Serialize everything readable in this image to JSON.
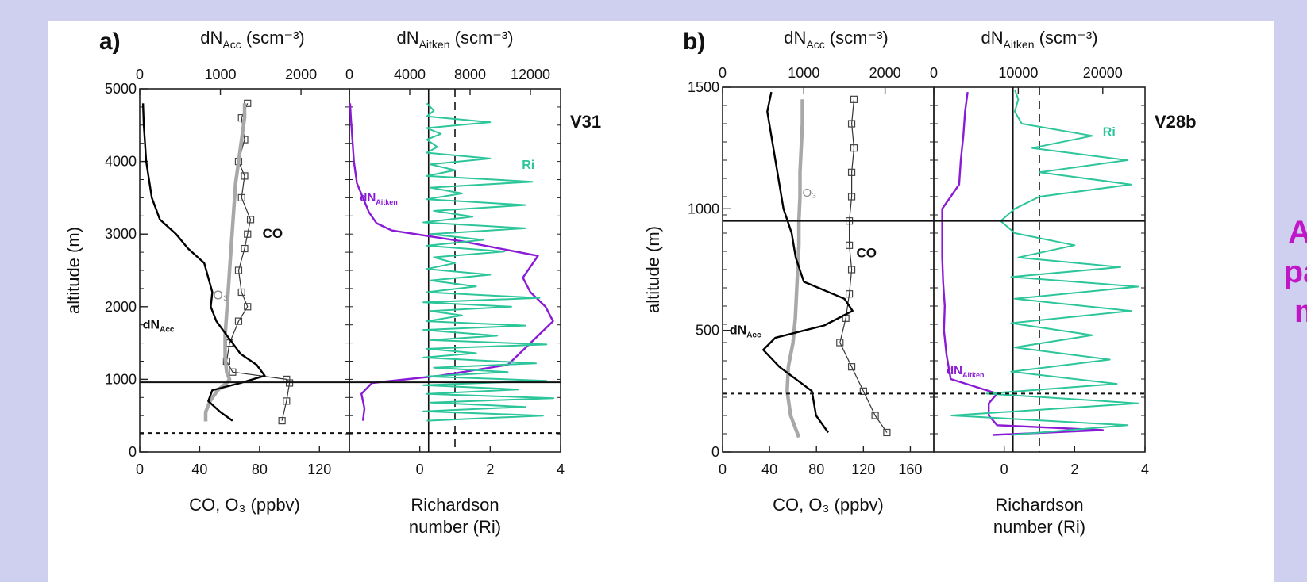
{
  "colors": {
    "background": "#cfd0f0",
    "card": "#ffffff",
    "dNAcc": "#000000",
    "CO": "#333333",
    "O3": "#a8a8a8",
    "dNAitken": "#8a1ad6",
    "Ri": "#2dc59a",
    "callout": "#c016c8"
  },
  "callout": {
    "line1": "Aitk",
    "line2": "parti",
    "line3": "mo"
  },
  "chart_data": [
    {
      "type": "line",
      "panel_label": "a)",
      "flight_label": "V31",
      "subplots": [
        {
          "xlabel_bottom": "CO, O₃ (ppbv)",
          "xlabel_top": "dN_Acc (scm⁻³)",
          "xlim_bottom": [
            0,
            140
          ],
          "xticks_bottom": [
            0,
            40,
            80,
            120
          ],
          "xlim_top": [
            0,
            2600
          ],
          "xticks_top": [
            0,
            1000,
            2000
          ],
          "ylabel": "altitude (m)",
          "ylim": [
            0,
            5000
          ],
          "yticks": [
            0,
            1000,
            2000,
            3000,
            4000,
            5000
          ],
          "series": [
            {
              "name": "CO",
              "axis": "bottom",
              "marker": "square",
              "y": [
                430,
                700,
                950,
                1000,
                1100,
                1250,
                1500,
                1800,
                2000,
                2200,
                2500,
                2800,
                3000,
                3200,
                3500,
                3800,
                4000,
                4300,
                4600,
                4800
              ],
              "x": [
                95,
                98,
                100,
                98,
                62,
                58,
                60,
                66,
                72,
                68,
                66,
                70,
                72,
                74,
                68,
                70,
                66,
                70,
                68,
                72
              ]
            },
            {
              "name": "O₃",
              "axis": "bottom",
              "y": [
                420,
                550,
                700,
                850,
                950,
                1000,
                1100,
                1300,
                1600,
                1900,
                2200,
                2500,
                2800,
                3100,
                3400,
                3700,
                4000,
                4300,
                4600,
                4800
              ],
              "x": [
                44,
                44,
                47,
                52,
                58,
                60,
                58,
                57,
                57,
                58,
                59,
                60,
                61,
                62,
                63,
                64,
                66,
                68,
                70,
                70
              ]
            },
            {
              "name": "dN_Acc",
              "axis": "top",
              "y": [
                430,
                550,
                700,
                850,
                950,
                1050,
                1200,
                1350,
                1500,
                1650,
                1800,
                2000,
                2200,
                2400,
                2600,
                2800,
                3000,
                3200,
                3500,
                4000,
                4500,
                4800
              ],
              "x": [
                1150,
                1000,
                850,
                900,
                1250,
                1550,
                1450,
                1250,
                1150,
                1050,
                950,
                880,
                900,
                850,
                800,
                600,
                450,
                250,
                150,
                80,
                50,
                40
              ]
            }
          ],
          "hlines": [
            {
              "y": 960,
              "style": "solid"
            },
            {
              "y": 260,
              "style": "dotted"
            }
          ]
        },
        {
          "xlabel_bottom": "Richardson number (Ri)",
          "xlabel_top": "dN_Aitken (scm⁻³)",
          "xlim_bottom": [
            -2,
            4
          ],
          "xticks_bottom": [
            0,
            2,
            4
          ],
          "xlim_top": [
            0,
            14000
          ],
          "xticks_top": [
            0,
            4000,
            8000,
            12000
          ],
          "ylim": [
            0,
            5000
          ],
          "series": [
            {
              "name": "dN_Aitken",
              "axis": "top",
              "y": [
                430,
                600,
                800,
                950,
                1050,
                1200,
                1500,
                1800,
                2000,
                2200,
                2400,
                2700,
                2900,
                3050,
                3150,
                3300,
                3500,
                3700,
                4000,
                4300,
                4600,
                4800
              ],
              "x": [
                900,
                1000,
                800,
                1500,
                6000,
                10500,
                12000,
                13500,
                13000,
                12000,
                11500,
                12500,
                7500,
                2800,
                1800,
                1300,
                900,
                500,
                300,
                200,
                100,
                50
              ],
              "annotation": "dN_Aitken"
            },
            {
              "name": "Ri",
              "axis": "bottom",
              "y": [
                430,
                500,
                560,
                620,
                680,
                740,
                800,
                860,
                920,
                980,
                1040,
                1100,
                1160,
                1220,
                1300,
                1360,
                1420,
                1480,
                1540,
                1600,
                1680,
                1740,
                1800,
                1880,
                1940,
                2000,
                2060,
                2120,
                2200,
                2280,
                2360,
                2440,
                2520,
                2600,
                2680,
                2760,
                2840,
                2920,
                3000,
                3080,
                3160,
                3240,
                3320,
                3400,
                3480,
                3560,
                3640,
                3720,
                3800,
                3880,
                3960,
                4040,
                4120,
                4200,
                4300,
                4380,
                4460,
                4540,
                4620,
                4700,
                4800
              ],
              "x": [
                0.2,
                3.5,
                0.1,
                3.0,
                0.3,
                3.8,
                0.2,
                2.8,
                0.1,
                3.6,
                0.2,
                2.5,
                0.4,
                3.3,
                0.1,
                1.6,
                0.2,
                3.6,
                0.3,
                2.2,
                0.1,
                3.0,
                0.2,
                1.2,
                0.3,
                2.6,
                0.1,
                3.4,
                0.2,
                1.6,
                0.3,
                2.0,
                0.2,
                1.0,
                0.4,
                2.4,
                0.2,
                1.8,
                0.3,
                3.0,
                0.1,
                1.5,
                0.4,
                3.0,
                0.2,
                1.2,
                0.3,
                3.2,
                0.2,
                1.0,
                0.3,
                2.0,
                0.2,
                0.5,
                0.2,
                0.6,
                0.2,
                2.0,
                0.2,
                0.4,
                0.2
              ],
              "annotation": "Ri"
            }
          ],
          "vlines": [
            {
              "x": 0.25,
              "style": "solid"
            },
            {
              "x": 1,
              "style": "dashed"
            }
          ],
          "hlines": [
            {
              "y": 960,
              "style": "solid"
            },
            {
              "y": 260,
              "style": "dotted"
            }
          ]
        }
      ]
    },
    {
      "type": "line",
      "panel_label": "b)",
      "flight_label": "V28b",
      "subplots": [
        {
          "xlabel_bottom": "CO, O₃ (ppbv)",
          "xlabel_top": "dN_Acc (scm⁻³)",
          "xlim_bottom": [
            0,
            180
          ],
          "xticks_bottom": [
            0,
            40,
            80,
            120,
            160
          ],
          "xlim_top": [
            0,
            2600
          ],
          "xticks_top": [
            0,
            1000,
            2000
          ],
          "ylabel": "altitude (m)",
          "ylim": [
            0,
            1500
          ],
          "yticks": [
            0,
            500,
            1000,
            1500
          ],
          "series": [
            {
              "name": "CO",
              "axis": "bottom",
              "marker": "square",
              "y": [
                80,
                150,
                250,
                350,
                450,
                550,
                650,
                750,
                850,
                950,
                1050,
                1150,
                1250,
                1350,
                1450
              ],
              "x": [
                140,
                130,
                120,
                110,
                100,
                105,
                108,
                110,
                108,
                108,
                110,
                110,
                112,
                110,
                112
              ]
            },
            {
              "name": "O₃",
              "axis": "bottom",
              "y": [
                60,
                150,
                250,
                350,
                450,
                550,
                650,
                750,
                850,
                950,
                1050,
                1150,
                1250,
                1350,
                1450
              ],
              "x": [
                65,
                58,
                55,
                56,
                60,
                62,
                63,
                64,
                65,
                65,
                66,
                66,
                67,
                68,
                68
              ]
            },
            {
              "name": "dN_Acc",
              "axis": "top",
              "y": [
                80,
                150,
                250,
                350,
                420,
                470,
                520,
                580,
                630,
                700,
                800,
                900,
                1000,
                1100,
                1200,
                1300,
                1400,
                1480
              ],
              "x": [
                1300,
                1150,
                1100,
                700,
                500,
                650,
                1250,
                1600,
                1500,
                1000,
                900,
                850,
                750,
                700,
                650,
                600,
                550,
                600
              ]
            }
          ],
          "hlines": [
            {
              "y": 950,
              "style": "solid"
            },
            {
              "y": 240,
              "style": "dotted"
            }
          ]
        },
        {
          "xlabel_bottom": "Richardson number (Ri)",
          "xlabel_top": "dN_Aitken (scm⁻³)",
          "xlim_bottom": [
            -2,
            4
          ],
          "xticks_bottom": [
            0,
            2,
            4
          ],
          "xlim_top": [
            0,
            25000
          ],
          "xticks_top": [
            0,
            10000,
            20000
          ],
          "ylim": [
            0,
            1500
          ],
          "series": [
            {
              "name": "dN_Aitken",
              "axis": "top",
              "y": [
                70,
                90,
                110,
                150,
                200,
                240,
                300,
                400,
                500,
                600,
                700,
                800,
                900,
                1000,
                1100,
                1200,
                1300,
                1400,
                1480
              ],
              "x": [
                7000,
                20000,
                7500,
                6500,
                6500,
                7500,
                2000,
                1500,
                1200,
                1300,
                1100,
                1000,
                1000,
                1000,
                3000,
                3200,
                3500,
                3700,
                4000
              ],
              "annotation": "dN_Aitken"
            },
            {
              "name": "Ri",
              "axis": "bottom",
              "y": [
                70,
                110,
                150,
                200,
                240,
                280,
                330,
                380,
                430,
                480,
                530,
                580,
                630,
                680,
                720,
                760,
                800,
                850,
                900,
                950,
                1000,
                1050,
                1100,
                1150,
                1200,
                1250,
                1300,
                1350,
                1400,
                1450,
                1490
              ],
              "x": [
                0.2,
                3.5,
                -1.5,
                3.8,
                -0.5,
                3.2,
                0.2,
                3.0,
                0.3,
                2.5,
                0.2,
                3.6,
                0.3,
                3.8,
                0.2,
                3.3,
                0.4,
                2.0,
                0.3,
                -0.1,
                0.3,
                1.0,
                3.6,
                1.0,
                3.5,
                0.8,
                2.5,
                0.5,
                0.3,
                0.4,
                0.3
              ],
              "annotation": "Ri"
            }
          ],
          "vlines": [
            {
              "x": 0.25,
              "style": "solid"
            },
            {
              "x": 1,
              "style": "dashed"
            }
          ],
          "hlines": [
            {
              "y": 950,
              "style": "solid"
            },
            {
              "y": 240,
              "style": "dotted"
            }
          ]
        }
      ]
    }
  ]
}
